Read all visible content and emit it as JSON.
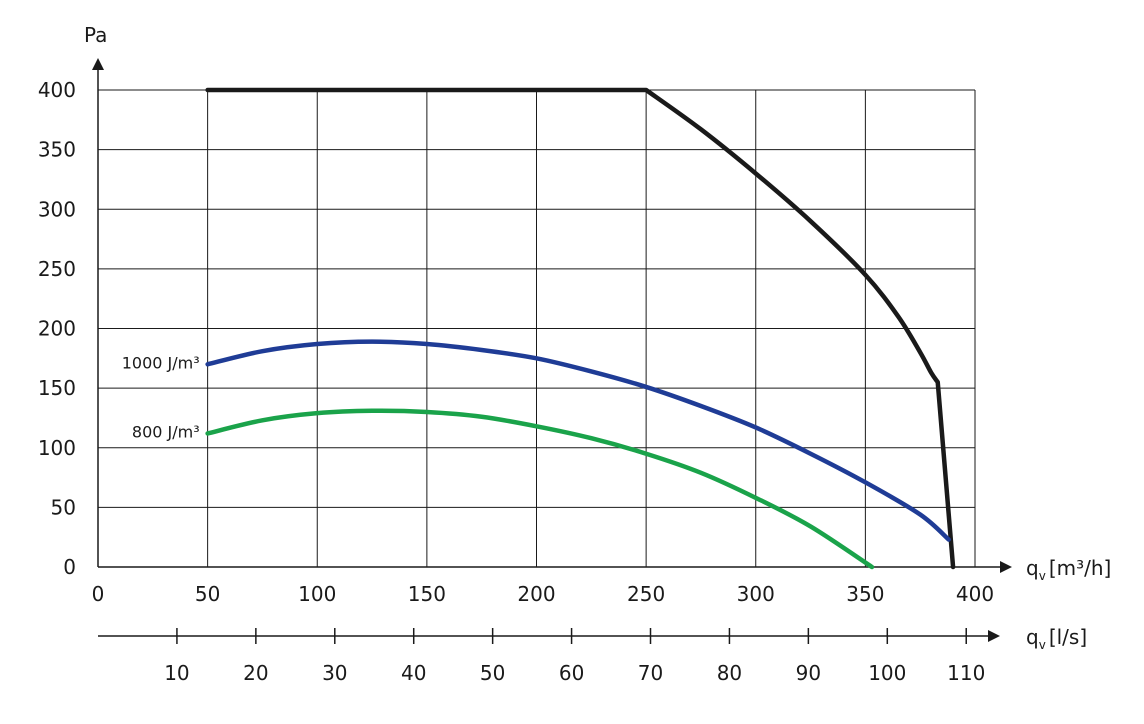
{
  "chart_data": {
    "type": "line",
    "ylabel": "Pa",
    "xlabel_main": "q",
    "xlabel_main_sub": "v",
    "xlabel_main_unit": "[m³/h]",
    "xlabel_secondary": "q",
    "xlabel_secondary_sub": "v",
    "xlabel_secondary_unit": "[l/s]",
    "xlim": [
      0,
      400
    ],
    "ylim": [
      0,
      400
    ],
    "x_ticks": [
      0,
      50,
      100,
      150,
      200,
      250,
      300,
      350,
      400
    ],
    "y_ticks": [
      0,
      50,
      100,
      150,
      200,
      250,
      300,
      350,
      400
    ],
    "secondary_x_ticks": [
      10,
      20,
      30,
      40,
      50,
      60,
      70,
      80,
      90,
      100,
      110
    ],
    "grid": true,
    "series": [
      {
        "color": "#1a1a1a",
        "x": [
          50,
          250,
          275,
          300,
          325,
          350,
          365,
          375,
          380,
          383,
          390
        ],
        "y": [
          400,
          400,
          367,
          330,
          290,
          245,
          210,
          180,
          163,
          155,
          0
        ]
      },
      {
        "name": "1000 J/m³",
        "color": "#1f3c96",
        "x": [
          50,
          75,
          100,
          125,
          150,
          175,
          200,
          225,
          250,
          275,
          300,
          325,
          350,
          375,
          388
        ],
        "y": [
          170,
          181,
          187,
          189,
          187,
          182,
          175,
          164,
          151,
          135,
          117,
          95,
          71,
          44,
          23
        ]
      },
      {
        "name": "800 J/m³",
        "color": "#1aa34a",
        "x": [
          50,
          75,
          100,
          125,
          150,
          175,
          200,
          225,
          250,
          275,
          300,
          325,
          353
        ],
        "y": [
          112,
          123,
          129,
          131,
          130,
          126,
          118,
          108,
          95,
          79,
          58,
          34,
          0
        ]
      }
    ]
  }
}
